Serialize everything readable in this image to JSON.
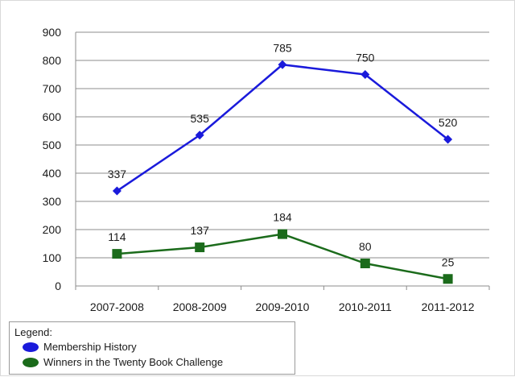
{
  "chart_data": {
    "type": "line",
    "categories": [
      "2007-2008",
      "2008-2009",
      "2009-2010",
      "2010-2011",
      "2011-2012"
    ],
    "series": [
      {
        "name": "Membership History",
        "values": [
          337,
          535,
          785,
          750,
          520
        ],
        "color": "#1a1adb",
        "marker": "diamond"
      },
      {
        "name": "Winners in the Twenty Book Challenge",
        "values": [
          114,
          137,
          184,
          80,
          25
        ],
        "color": "#1b6b1b",
        "marker": "square"
      }
    ],
    "data_labels": [
      [
        "337",
        "535",
        "785",
        "750",
        "520"
      ],
      [
        "114",
        "137",
        "184",
        "80",
        "25"
      ]
    ],
    "ylim": [
      0,
      900
    ],
    "yticks": [
      0,
      100,
      200,
      300,
      400,
      500,
      600,
      700,
      800,
      900
    ],
    "ytick_labels": [
      "0",
      "100",
      "200",
      "300",
      "400",
      "500",
      "600",
      "700",
      "800",
      "900"
    ],
    "grid": true,
    "legend_placement": "bottom-left",
    "legend_title": "Legend:"
  }
}
